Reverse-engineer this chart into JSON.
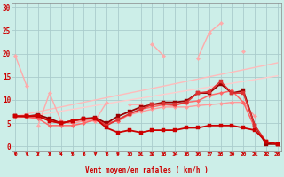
{
  "background_color": "#cceee8",
  "grid_color": "#aacccc",
  "x_ticks": [
    0,
    1,
    2,
    3,
    4,
    5,
    6,
    7,
    8,
    9,
    10,
    11,
    12,
    13,
    14,
    15,
    16,
    17,
    18,
    19,
    20,
    21,
    22,
    23
  ],
  "xlabel": "Vent moyen/en rafales ( km/h )",
  "ylabel_ticks": [
    0,
    5,
    10,
    15,
    20,
    25,
    30
  ],
  "ylim": [
    -1,
    31
  ],
  "xlim": [
    -0.3,
    23.3
  ],
  "lines": [
    {
      "y": [
        19.5,
        13.0,
        null,
        null,
        null,
        null,
        null,
        null,
        null,
        null,
        null,
        null,
        22.0,
        19.5,
        null,
        null,
        19.0,
        24.5,
        26.5,
        null,
        20.5,
        null,
        null,
        null
      ],
      "color": "#ffaaaa",
      "lw": 1.0,
      "marker": "D",
      "ms": 2.2,
      "zorder": 3
    },
    {
      "y": [
        6.5,
        7.0,
        7.5,
        8.0,
        8.5,
        9.0,
        9.5,
        10.0,
        10.5,
        11.0,
        11.5,
        12.0,
        12.5,
        13.0,
        13.5,
        14.0,
        14.5,
        15.0,
        15.5,
        16.0,
        16.5,
        17.0,
        17.5,
        18.0
      ],
      "color": "#ffbbbb",
      "lw": 1.0,
      "marker": null,
      "ms": 0,
      "zorder": 2
    },
    {
      "y": [
        6.0,
        6.4,
        6.8,
        7.2,
        7.6,
        8.0,
        8.4,
        8.8,
        9.2,
        9.6,
        10.0,
        10.4,
        10.8,
        11.2,
        11.6,
        12.0,
        12.4,
        12.8,
        13.2,
        13.6,
        14.0,
        14.4,
        14.8,
        15.2
      ],
      "color": "#ffcccc",
      "lw": 1.0,
      "marker": null,
      "ms": 0,
      "zorder": 2
    },
    {
      "y": [
        null,
        null,
        4.5,
        11.5,
        5.5,
        5.0,
        5.5,
        5.5,
        9.5,
        null,
        9.0,
        9.0,
        null,
        null,
        9.0,
        9.5,
        null,
        null,
        null,
        null,
        null,
        null,
        null,
        null
      ],
      "color": "#ffaaaa",
      "lw": 1.0,
      "marker": "D",
      "ms": 2.2,
      "zorder": 3
    },
    {
      "y": [
        6.5,
        6.5,
        6.3,
        5.8,
        5.2,
        5.0,
        5.5,
        5.5,
        5.0,
        5.5,
        6.8,
        7.5,
        8.0,
        8.5,
        8.5,
        8.5,
        8.8,
        9.0,
        9.2,
        9.5,
        9.5,
        6.5,
        null,
        null
      ],
      "color": "#ff9999",
      "lw": 1.0,
      "marker": "D",
      "ms": 2.2,
      "zorder": 3
    },
    {
      "y": [
        6.5,
        6.3,
        6.0,
        4.5,
        4.5,
        4.5,
        5.0,
        5.8,
        5.0,
        5.5,
        7.0,
        8.0,
        8.5,
        9.0,
        8.8,
        9.5,
        9.8,
        11.0,
        11.5,
        12.0,
        9.5,
        4.0,
        null,
        null
      ],
      "color": "#ff6666",
      "lw": 1.1,
      "marker": "D",
      "ms": 2.2,
      "zorder": 4
    },
    {
      "y": [
        6.5,
        6.5,
        6.5,
        5.5,
        5.0,
        5.5,
        6.0,
        6.0,
        4.0,
        3.0,
        3.5,
        3.0,
        3.5,
        3.5,
        3.5,
        4.0,
        4.0,
        4.5,
        4.5,
        4.5,
        4.0,
        3.5,
        1.0,
        0.5
      ],
      "color": "#cc0000",
      "lw": 1.3,
      "marker": "s",
      "ms": 2.8,
      "zorder": 6
    },
    {
      "y": [
        6.5,
        6.5,
        6.8,
        6.0,
        5.0,
        5.5,
        6.0,
        6.2,
        5.0,
        6.5,
        7.5,
        8.5,
        9.0,
        9.5,
        9.5,
        9.8,
        11.5,
        11.5,
        13.5,
        11.5,
        12.0,
        4.5,
        0.5,
        0.5
      ],
      "color": "#990000",
      "lw": 1.3,
      "marker": "s",
      "ms": 2.8,
      "zorder": 5
    },
    {
      "y": [
        6.5,
        6.5,
        6.5,
        5.5,
        5.0,
        5.5,
        5.8,
        6.0,
        4.5,
        5.8,
        7.0,
        8.0,
        9.0,
        9.2,
        9.0,
        9.5,
        11.5,
        11.8,
        14.0,
        11.5,
        11.5,
        4.5,
        1.0,
        0.5
      ],
      "color": "#dd3333",
      "lw": 1.2,
      "marker": "s",
      "ms": 2.8,
      "zorder": 5
    }
  ],
  "arrow_color": "#cc0000"
}
